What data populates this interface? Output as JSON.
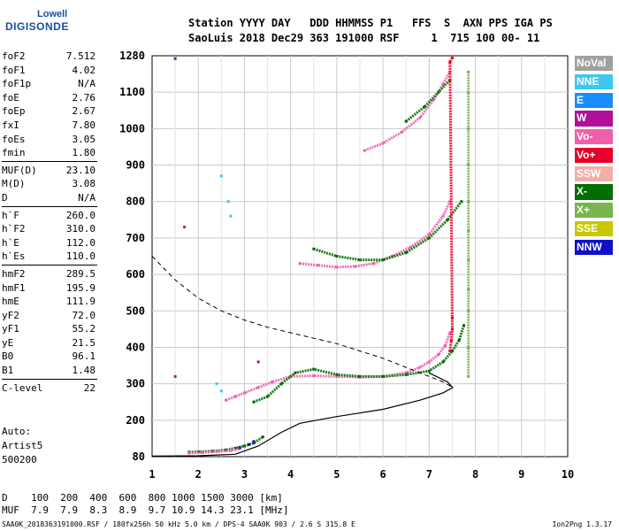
{
  "logo": {
    "line1": "Lowell",
    "line2": "DIGISONDE"
  },
  "header": {
    "row1": "Station YYYY DAY   DDD HHMMSS P1   FFS  S  AXN PPS IGA PS",
    "row2": "SaoLuis 2018 Dec29 363 191000 RSF     1  715 100 00- 11"
  },
  "params": [
    {
      "k": "foF2",
      "v": "7.512"
    },
    {
      "k": "foF1",
      "v": "4.02"
    },
    {
      "k": "foF1p",
      "v": "N/A"
    },
    {
      "k": "foE",
      "v": "2.76"
    },
    {
      "k": "foEp",
      "v": "2.67"
    },
    {
      "k": "fxI",
      "v": "7.80"
    },
    {
      "k": "foEs",
      "v": "3.05"
    },
    {
      "k": "fmin",
      "v": "1.80"
    }
  ],
  "params2": [
    {
      "k": "MUF(D)",
      "v": "23.10"
    },
    {
      "k": "M(D)",
      "v": "3.08"
    },
    {
      "k": "D",
      "v": "N/A"
    }
  ],
  "params3": [
    {
      "k": "h`F",
      "v": "260.0"
    },
    {
      "k": "h`F2",
      "v": "310.0"
    },
    {
      "k": "h`E",
      "v": "112.0"
    },
    {
      "k": "h`Es",
      "v": "110.0"
    }
  ],
  "params4": [
    {
      "k": "hmF2",
      "v": "289.5"
    },
    {
      "k": "hmF1",
      "v": "195.9"
    },
    {
      "k": "hmE",
      "v": "111.9"
    },
    {
      "k": "yF2",
      "v": "72.0"
    },
    {
      "k": "yF1",
      "v": "55.2"
    },
    {
      "k": "yE",
      "v": "21.5"
    },
    {
      "k": "B0",
      "v": "96.1"
    },
    {
      "k": "B1",
      "v": "1.48"
    }
  ],
  "params5": [
    {
      "k": "C-level",
      "v": "22"
    }
  ],
  "auto": {
    "l1": "Auto:",
    "l2": "Artist5",
    "l3": "500200"
  },
  "muf": {
    "row1": "D    100  200  400  600  800 1000 1500 3000 [km]",
    "row2": "MUF  7.9  7.9  8.3  8.9  9.7 10.9 14.3 23.1 [MHz]"
  },
  "footer": "SAA0K_2018363191000.RSF / 180fx256h 50 kHz 5.0 km / DPS-4 SAA0K 903 / 2.6 S 315.8 E",
  "footer_right": "Ion2Png 1.3.17",
  "legend": [
    {
      "label": "NoVal",
      "color": "#a0a0a0"
    },
    {
      "label": "NNE",
      "color": "#3cc8f0"
    },
    {
      "label": "E",
      "color": "#1a8cff"
    },
    {
      "label": "W",
      "color": "#b0109a"
    },
    {
      "label": "Vo-",
      "color": "#f060a8"
    },
    {
      "label": "Vo+",
      "color": "#e8002a"
    },
    {
      "label": "SSW",
      "color": "#f0b0a8"
    },
    {
      "label": "X-",
      "color": "#006e00"
    },
    {
      "label": "X+",
      "color": "#78b450"
    },
    {
      "label": "SSE",
      "color": "#c8c800"
    },
    {
      "label": "NNW",
      "color": "#1010c8"
    }
  ],
  "chart_data": {
    "type": "scatter",
    "title": "",
    "xlabel": "",
    "ylabel": "",
    "xlim": [
      1,
      10
    ],
    "ylim": [
      80,
      1280
    ],
    "x_ticks": [
      1,
      2,
      3,
      4,
      5,
      6,
      7,
      8,
      9,
      10
    ],
    "y_ticks": [
      80,
      200,
      300,
      400,
      500,
      600,
      700,
      800,
      900,
      1000,
      1100,
      1280
    ],
    "grid": true,
    "legend_position": "right",
    "series": [
      {
        "name": "Vo-",
        "color": "#f060a8",
        "points": [
          [
            2.6,
            255
          ],
          [
            2.8,
            265
          ],
          [
            3.0,
            275
          ],
          [
            3.3,
            290
          ],
          [
            3.6,
            305
          ],
          [
            4.0,
            320
          ],
          [
            4.5,
            322
          ],
          [
            5.0,
            320
          ],
          [
            5.5,
            318
          ],
          [
            6.0,
            320
          ],
          [
            6.5,
            330
          ],
          [
            6.8,
            345
          ],
          [
            7.0,
            360
          ],
          [
            7.2,
            380
          ],
          [
            7.35,
            405
          ],
          [
            7.45,
            440
          ]
        ]
      },
      {
        "name": "X-",
        "color": "#006e00",
        "points": [
          [
            3.2,
            250
          ],
          [
            3.5,
            265
          ],
          [
            3.8,
            300
          ],
          [
            4.1,
            330
          ],
          [
            4.5,
            340
          ],
          [
            5.0,
            325
          ],
          [
            5.5,
            320
          ],
          [
            6.0,
            320
          ],
          [
            6.5,
            325
          ],
          [
            7.0,
            335
          ],
          [
            7.3,
            360
          ],
          [
            7.5,
            390
          ],
          [
            7.65,
            420
          ],
          [
            7.75,
            460
          ]
        ]
      },
      {
        "name": "Vo- 2F",
        "color": "#f060a8",
        "points": [
          [
            4.2,
            630
          ],
          [
            4.6,
            625
          ],
          [
            5.0,
            620
          ],
          [
            5.4,
            622
          ],
          [
            5.8,
            630
          ],
          [
            6.2,
            650
          ],
          [
            6.6,
            675
          ],
          [
            7.0,
            710
          ],
          [
            7.3,
            760
          ],
          [
            7.45,
            800
          ]
        ]
      },
      {
        "name": "X- 2F",
        "color": "#006e00",
        "points": [
          [
            4.5,
            670
          ],
          [
            5.0,
            650
          ],
          [
            5.5,
            640
          ],
          [
            6.0,
            640
          ],
          [
            6.5,
            660
          ],
          [
            7.0,
            700
          ],
          [
            7.4,
            750
          ],
          [
            7.7,
            800
          ]
        ]
      },
      {
        "name": "Vo- 3F",
        "color": "#f060a8",
        "points": [
          [
            5.6,
            940
          ],
          [
            6.0,
            960
          ],
          [
            6.4,
            990
          ],
          [
            6.8,
            1030
          ],
          [
            7.1,
            1080
          ],
          [
            7.3,
            1140
          ],
          [
            7.45,
            1200
          ]
        ]
      },
      {
        "name": "X- 3F",
        "color": "#006e00",
        "points": [
          [
            6.5,
            1020
          ],
          [
            6.9,
            1060
          ],
          [
            7.2,
            1100
          ],
          [
            7.45,
            1160
          ]
        ]
      },
      {
        "name": "X+",
        "color": "#78b450",
        "points": [
          [
            7.85,
            320
          ],
          [
            7.85,
            400
          ],
          [
            7.85,
            500
          ],
          [
            7.85,
            560
          ],
          [
            7.85,
            640
          ],
          [
            7.85,
            720
          ],
          [
            7.85,
            800
          ],
          [
            7.85,
            900
          ],
          [
            7.85,
            1000
          ],
          [
            7.85,
            1100
          ],
          [
            7.85,
            1200
          ]
        ]
      },
      {
        "name": "Vo+",
        "color": "#e8002a",
        "points": [
          [
            7.45,
            390
          ],
          [
            7.48,
            420
          ],
          [
            7.5,
            450
          ],
          [
            7.5,
            480
          ],
          [
            7.45,
            1250
          ],
          [
            7.5,
            1270
          ]
        ]
      },
      {
        "name": "E-layer",
        "color": "#006e00",
        "points": [
          [
            1.8,
            95
          ],
          [
            2.0,
            96
          ],
          [
            2.3,
            98
          ],
          [
            2.6,
            102
          ],
          [
            2.8,
            108
          ],
          [
            3.0,
            115
          ],
          [
            3.2,
            125
          ],
          [
            3.4,
            145
          ]
        ]
      },
      {
        "name": "E-layer Vo",
        "color": "#f060a8",
        "points": [
          [
            1.8,
            92
          ],
          [
            2.1,
            94
          ],
          [
            2.4,
            97
          ],
          [
            2.7,
            100
          ],
          [
            2.9,
            106
          ]
        ]
      },
      {
        "name": "NNE",
        "color": "#3cc8f0",
        "points": [
          [
            1.5,
            1270
          ],
          [
            2.5,
            870
          ],
          [
            2.65,
            800
          ],
          [
            2.7,
            760
          ],
          [
            2.4,
            300
          ],
          [
            2.5,
            280
          ]
        ]
      },
      {
        "name": "W",
        "color": "#b0109a",
        "points": [
          [
            1.5,
            1265
          ],
          [
            1.7,
            730
          ],
          [
            3.3,
            360
          ],
          [
            1.5,
            320
          ]
        ]
      },
      {
        "name": "NNW",
        "color": "#1010c8",
        "points": [
          [
            3.1,
            120
          ],
          [
            3.2,
            130
          ],
          [
            2.9,
            110
          ]
        ]
      }
    ],
    "profile": {
      "type": "line",
      "color": "#000000",
      "points": [
        [
          1,
          82
        ],
        [
          2,
          83
        ],
        [
          2.8,
          88
        ],
        [
          3.3,
          115
        ],
        [
          3.8,
          160
        ],
        [
          4.2,
          190
        ],
        [
          5,
          210
        ],
        [
          6,
          230
        ],
        [
          6.8,
          255
        ],
        [
          7.3,
          275
        ],
        [
          7.51,
          289.5
        ],
        [
          7.4,
          305
        ],
        [
          7.0,
          330
        ]
      ]
    },
    "muf_curve": {
      "type": "dashed-line",
      "color": "#000000",
      "points": [
        [
          1,
          650
        ],
        [
          1.5,
          585
        ],
        [
          2,
          535
        ],
        [
          2.5,
          500
        ],
        [
          3,
          475
        ],
        [
          3.5,
          455
        ],
        [
          4,
          440
        ],
        [
          4.5,
          425
        ],
        [
          5,
          410
        ],
        [
          5.5,
          390
        ],
        [
          6,
          370
        ],
        [
          6.5,
          345
        ],
        [
          7,
          320
        ],
        [
          7.3,
          305
        ],
        [
          7.51,
          290
        ]
      ]
    }
  }
}
